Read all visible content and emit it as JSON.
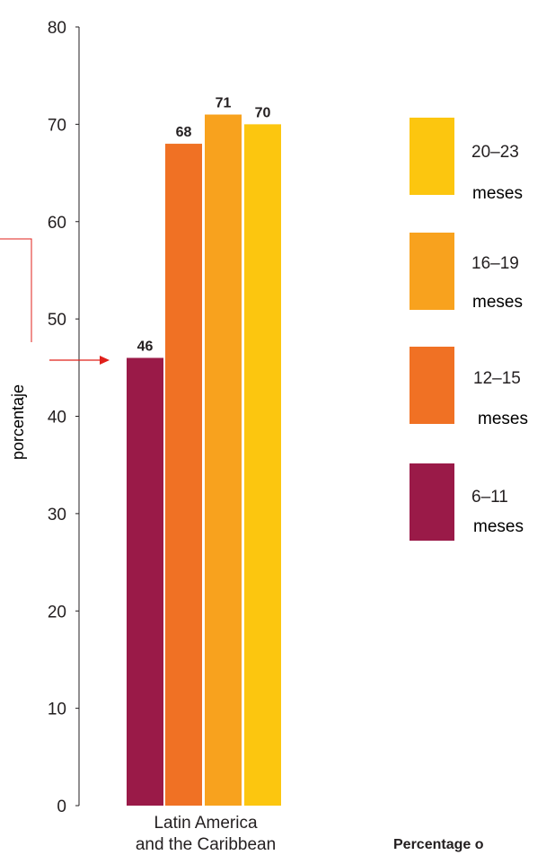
{
  "chart_data": {
    "type": "bar",
    "title": "",
    "xlabel": "",
    "ylabel": "porcentaje",
    "ylim": [
      0,
      80
    ],
    "yticks": [
      0,
      10,
      20,
      30,
      40,
      50,
      60,
      70,
      80
    ],
    "ytick_labels": [
      "0",
      "10",
      "20",
      "30",
      "40",
      "50",
      "60",
      "70",
      "80"
    ],
    "categories": [
      "Latin America\nand the Caribbean"
    ],
    "series": [
      {
        "name": "6–11",
        "unit": "meses",
        "color": "#9a1a48",
        "values": [
          46
        ]
      },
      {
        "name": "12–15",
        "unit": "meses",
        "color": "#f07124",
        "values": [
          68
        ]
      },
      {
        "name": "16–19",
        "unit": "meses",
        "color": "#f8a21e",
        "values": [
          71
        ]
      },
      {
        "name": "20–23",
        "unit": "meses",
        "color": "#fcc60f",
        "values": [
          70
        ]
      }
    ],
    "legend_position": "right",
    "annotation_color": "#e0201b",
    "footer_text": "Percentage o"
  }
}
